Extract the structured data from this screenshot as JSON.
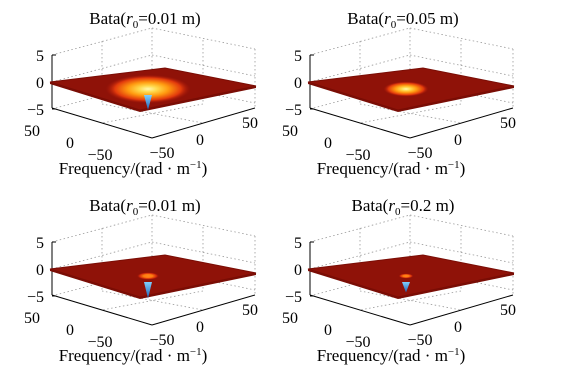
{
  "colors": {
    "surface_edge": "#7a0d05",
    "surface_body": "#8f1208",
    "peak_center": "#fff7a0",
    "peak_mid": "#ffb300",
    "peak_outer": "#e0300a",
    "spike": "#2f86d6"
  },
  "chart_data": [
    {
      "type": "surface",
      "title_prefix": "Bata(",
      "title_var": "r",
      "title_sub": "0",
      "title_suffix": "=0.01 m)",
      "xlabel_main": "Frequency/(rad · m",
      "xlabel_sup": "−1",
      "xlabel_close": ")",
      "zlim": [
        -5,
        5
      ],
      "zticks": [
        "5",
        "0",
        "−5"
      ],
      "yticks": [
        "50",
        "0",
        "−50"
      ],
      "xticks": [
        "−50",
        "0",
        "50"
      ],
      "surface_level": 0,
      "bump_radius": 34,
      "spike_depth": 0.5,
      "hot_glow": true
    },
    {
      "type": "surface",
      "title_prefix": "Bata(",
      "title_var": "r",
      "title_sub": "0",
      "title_suffix": "=0.05 m)",
      "xlabel_main": "Frequency/(rad · m",
      "xlabel_sup": "−1",
      "xlabel_close": ")",
      "zlim": [
        -5,
        5
      ],
      "zticks": [
        "5",
        "0",
        "−5"
      ],
      "yticks": [
        "50",
        "0",
        "−50"
      ],
      "xticks": [
        "−50",
        "0",
        "50"
      ],
      "surface_level": 0,
      "bump_radius": 18,
      "spike_depth": 0,
      "hot_glow": true
    },
    {
      "type": "surface",
      "title_prefix": "Bata(",
      "title_var": "r",
      "title_sub": "0",
      "title_suffix": "=0.01 m)",
      "xlabel_main": "Frequency/(rad · m",
      "xlabel_sup": "−1",
      "xlabel_close": ")",
      "zlim": [
        -5,
        5
      ],
      "zticks": [
        "5",
        "0",
        "−5"
      ],
      "yticks": [
        "50",
        "0",
        "−50"
      ],
      "xticks": [
        "−50",
        "0",
        "50"
      ],
      "surface_level": 0,
      "bump_radius": 9,
      "spike_depth": 0.55,
      "hot_glow": false
    },
    {
      "type": "surface",
      "title_prefix": "Bata(",
      "title_var": "r",
      "title_sub": "0",
      "title_suffix": "=0.2 m)",
      "xlabel_main": "Frequency/(rad · m",
      "xlabel_sup": "−1",
      "xlabel_close": ")",
      "zlim": [
        -5,
        5
      ],
      "zticks": [
        "5",
        "0",
        "−5"
      ],
      "yticks": [
        "50",
        "0",
        "−50"
      ],
      "xticks": [
        "−50",
        "0",
        "50"
      ],
      "surface_level": 0,
      "bump_radius": 6,
      "spike_depth": 0.35,
      "hot_glow": false
    }
  ]
}
